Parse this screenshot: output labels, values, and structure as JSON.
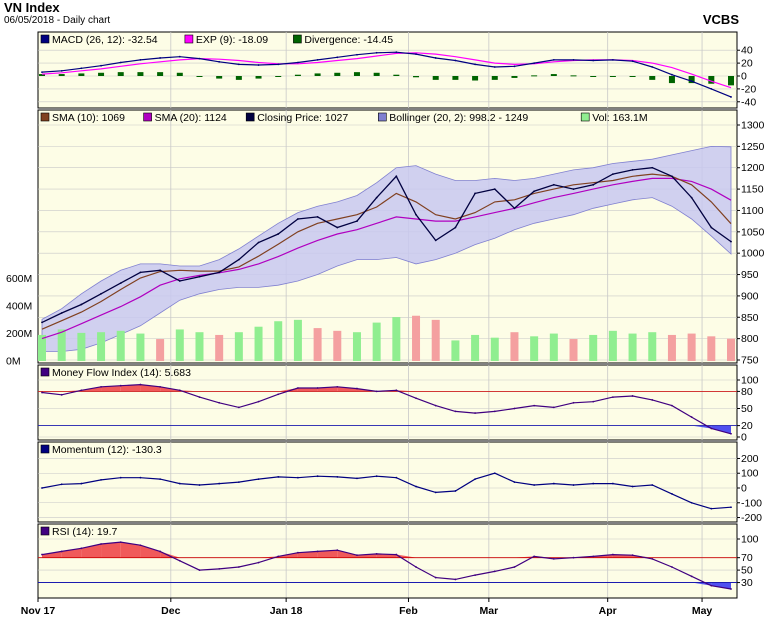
{
  "header": {
    "title": "VN Index",
    "subtitle": "06/05/2018 - Daily chart",
    "source": "VCBS"
  },
  "colors": {
    "plot_bg": "#fdfde6",
    "grid": "#c8c8c8",
    "close": "#000040",
    "sma10": "#804020",
    "sma20": "#b000c0",
    "boll_fill": "#c8c8f0",
    "boll_line": "#8080d0",
    "vol_up": "#90ee90",
    "vol_down": "#f4a0a0",
    "macd": "#000080",
    "exp": "#ff00ff",
    "div": "#006400",
    "osc_line": "#400080",
    "osc_fill_up": "#f05a5a",
    "osc_fill_down": "#5050f0",
    "mom": "#000080",
    "thr_red": "#cc0000",
    "thr_blue": "#0000aa"
  },
  "chart_data": [
    {
      "type": "line",
      "panel": "macd",
      "legend": [
        {
          "label": "MACD (26, 12): -32.54",
          "color": "#000080"
        },
        {
          "label": "EXP (9): -18.09",
          "color": "#ff00ff"
        },
        {
          "label": "Divergence: -14.45",
          "color": "#006400"
        }
      ],
      "y_ticks": [
        "40",
        "20",
        "0",
        "-20",
        "-40"
      ],
      "ylim": [
        -45,
        45
      ],
      "series": [
        {
          "name": "MACD (26, 12)",
          "values": [
            6,
            8,
            12,
            16,
            21,
            25,
            28,
            30,
            27,
            22,
            18,
            17,
            18,
            21,
            25,
            29,
            33,
            36,
            37,
            34,
            28,
            24,
            18,
            14,
            15,
            20,
            25,
            25,
            24,
            25,
            23,
            14,
            2,
            -8,
            -20,
            -32.5
          ]
        },
        {
          "name": "EXP (9)",
          "values": [
            3,
            5,
            8,
            11,
            15,
            19,
            22,
            25,
            27,
            26,
            24,
            21,
            19,
            19,
            21,
            24,
            27,
            31,
            35,
            36,
            34,
            30,
            25,
            20,
            18,
            19,
            22,
            24,
            25,
            25,
            24,
            20,
            13,
            3,
            -8,
            -18.1
          ]
        },
        {
          "name": "Divergence",
          "values": [
            3,
            3,
            4,
            5,
            6,
            6,
            6,
            5,
            0,
            -4,
            -6,
            -4,
            -1,
            2,
            4,
            5,
            6,
            5,
            2,
            -2,
            -6,
            -6,
            -7,
            -6,
            -3,
            1,
            3,
            1,
            -1,
            0,
            -1,
            -6,
            -11,
            -11,
            -12,
            -14.5
          ]
        }
      ]
    },
    {
      "type": "line",
      "panel": "price",
      "legend": [
        {
          "label": "SMA (10): 1069",
          "color": "#804020"
        },
        {
          "label": "SMA (20): 1124",
          "color": "#b000c0"
        },
        {
          "label": "Closing Price: 1027",
          "color": "#000040"
        },
        {
          "label": "Bollinger (20, 2): 998.2 - 1249",
          "color": "#8080d0"
        },
        {
          "label": "Vol: 163.1M",
          "color": "#90ee90"
        }
      ],
      "y_ticks": [
        "1300",
        "1250",
        "1200",
        "1150",
        "1100",
        "1050",
        "1000",
        "950",
        "900",
        "850",
        "800",
        "750"
      ],
      "vol_ticks": [
        "600M",
        "400M",
        "200M",
        "0M"
      ],
      "ylim": [
        750,
        1300
      ],
      "vol_lim": [
        0,
        700
      ],
      "series": [
        {
          "name": "Closing Price",
          "values": [
            838,
            860,
            880,
            905,
            930,
            955,
            960,
            935,
            945,
            955,
            985,
            1025,
            1045,
            1080,
            1085,
            1060,
            1075,
            1130,
            1180,
            1090,
            1030,
            1060,
            1140,
            1150,
            1105,
            1145,
            1160,
            1150,
            1160,
            1185,
            1195,
            1200,
            1180,
            1130,
            1060,
            1027
          ]
        },
        {
          "name": "SMA (10)",
          "values": [
            822,
            842,
            862,
            887,
            915,
            942,
            957,
            960,
            958,
            958,
            968,
            993,
            1021,
            1050,
            1070,
            1080,
            1090,
            1108,
            1140,
            1120,
            1090,
            1080,
            1095,
            1120,
            1125,
            1140,
            1150,
            1160,
            1165,
            1170,
            1180,
            1185,
            1180,
            1160,
            1120,
            1069
          ]
        },
        {
          "name": "SMA (20)",
          "values": [
            800,
            815,
            835,
            855,
            875,
            898,
            925,
            940,
            948,
            954,
            962,
            975,
            992,
            1012,
            1030,
            1045,
            1055,
            1070,
            1085,
            1080,
            1075,
            1075,
            1085,
            1095,
            1105,
            1118,
            1130,
            1140,
            1150,
            1160,
            1168,
            1175,
            1175,
            1168,
            1150,
            1124
          ]
        },
        {
          "name": "Bollinger upper",
          "values": [
            845,
            870,
            905,
            935,
            960,
            975,
            975,
            970,
            970,
            985,
            1010,
            1040,
            1070,
            1095,
            1110,
            1120,
            1135,
            1165,
            1200,
            1205,
            1185,
            1170,
            1170,
            1175,
            1170,
            1175,
            1185,
            1195,
            1200,
            1210,
            1215,
            1220,
            1230,
            1240,
            1250,
            1249
          ]
        },
        {
          "name": "Bollinger lower",
          "values": [
            770,
            770,
            775,
            790,
            810,
            830,
            860,
            890,
            905,
            915,
            920,
            920,
            925,
            935,
            950,
            970,
            985,
            985,
            990,
            975,
            985,
            1000,
            1020,
            1035,
            1055,
            1070,
            1080,
            1090,
            1105,
            1115,
            1125,
            1130,
            1110,
            1080,
            1040,
            998
          ]
        },
        {
          "name": "Volume (M)",
          "values": [
            190,
            230,
            205,
            210,
            220,
            200,
            160,
            230,
            210,
            190,
            210,
            250,
            290,
            300,
            240,
            220,
            210,
            280,
            320,
            330,
            300,
            150,
            190,
            170,
            210,
            180,
            200,
            160,
            190,
            220,
            200,
            210,
            190,
            200,
            180,
            163
          ],
          "up": [
            true,
            true,
            true,
            true,
            true,
            true,
            false,
            true,
            true,
            false,
            true,
            true,
            true,
            true,
            false,
            false,
            true,
            true,
            true,
            false,
            false,
            true,
            true,
            true,
            false,
            true,
            true,
            false,
            true,
            true,
            true,
            true,
            false,
            false,
            false,
            false
          ]
        }
      ]
    },
    {
      "type": "line",
      "panel": "mfi",
      "legend": [
        {
          "label": "Money Flow Index (14): 5.683",
          "color": "#400080"
        }
      ],
      "y_ticks": [
        "100",
        "80",
        "50",
        "20",
        "0"
      ],
      "ylim": [
        0,
        100
      ],
      "thresholds": [
        80,
        20
      ],
      "series": [
        {
          "name": "Money Flow Index (14)",
          "values": [
            78,
            74,
            82,
            88,
            90,
            92,
            88,
            82,
            70,
            60,
            52,
            62,
            75,
            86,
            86,
            88,
            85,
            80,
            82,
            68,
            55,
            45,
            42,
            45,
            50,
            55,
            52,
            60,
            62,
            70,
            72,
            65,
            55,
            35,
            15,
            5.683
          ]
        }
      ]
    },
    {
      "type": "line",
      "panel": "momentum",
      "legend": [
        {
          "label": "Momentum (12): -130.3",
          "color": "#000080"
        }
      ],
      "y_ticks": [
        "200",
        "100",
        "0",
        "-100",
        "-200"
      ],
      "ylim": [
        -210,
        210
      ],
      "series": [
        {
          "name": "Momentum (12)",
          "values": [
            0,
            25,
            30,
            55,
            70,
            70,
            60,
            30,
            20,
            30,
            40,
            60,
            75,
            70,
            80,
            75,
            65,
            80,
            70,
            10,
            -30,
            -20,
            60,
            100,
            40,
            20,
            30,
            20,
            30,
            30,
            10,
            20,
            -40,
            -100,
            -140,
            -130.3
          ]
        }
      ]
    },
    {
      "type": "line",
      "panel": "rsi",
      "legend": [
        {
          "label": "RSI (14): 19.7",
          "color": "#400080"
        }
      ],
      "y_ticks": [
        "100",
        "70",
        "50",
        "30"
      ],
      "ylim": [
        10,
        100
      ],
      "thresholds": [
        70,
        30
      ],
      "series": [
        {
          "name": "RSI (14)",
          "values": [
            75,
            80,
            85,
            92,
            95,
            90,
            80,
            65,
            50,
            52,
            55,
            62,
            72,
            78,
            80,
            82,
            74,
            76,
            75,
            55,
            38,
            35,
            42,
            48,
            55,
            72,
            68,
            70,
            72,
            75,
            74,
            68,
            55,
            40,
            25,
            19.7
          ]
        }
      ]
    }
  ],
  "x_axis": {
    "labels": [
      "Nov 17",
      "Dec",
      "Jan 18",
      "Feb",
      "Mar",
      "Apr",
      "May"
    ],
    "positions": [
      0,
      0.19,
      0.355,
      0.53,
      0.645,
      0.815,
      0.95
    ]
  }
}
